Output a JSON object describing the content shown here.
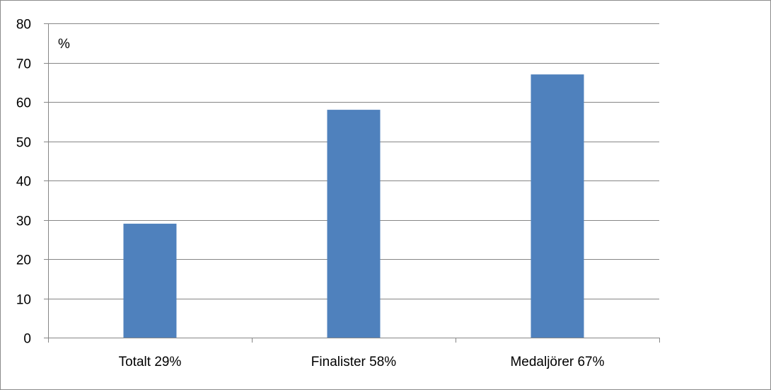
{
  "chart_data": {
    "type": "bar",
    "categories": [
      "Totalt 29%",
      "Finalister 58%",
      "Medaljörer 67%"
    ],
    "values": [
      29,
      58,
      67
    ],
    "title": "",
    "xlabel": "",
    "ylabel": "%",
    "ylim": [
      0,
      80
    ],
    "yticks": [
      0,
      10,
      20,
      30,
      40,
      50,
      60,
      70,
      80
    ],
    "grid": true,
    "legend": "none",
    "colors": {
      "bar": "#4f81bd",
      "grid": "#868686",
      "axis": "#868686"
    }
  }
}
